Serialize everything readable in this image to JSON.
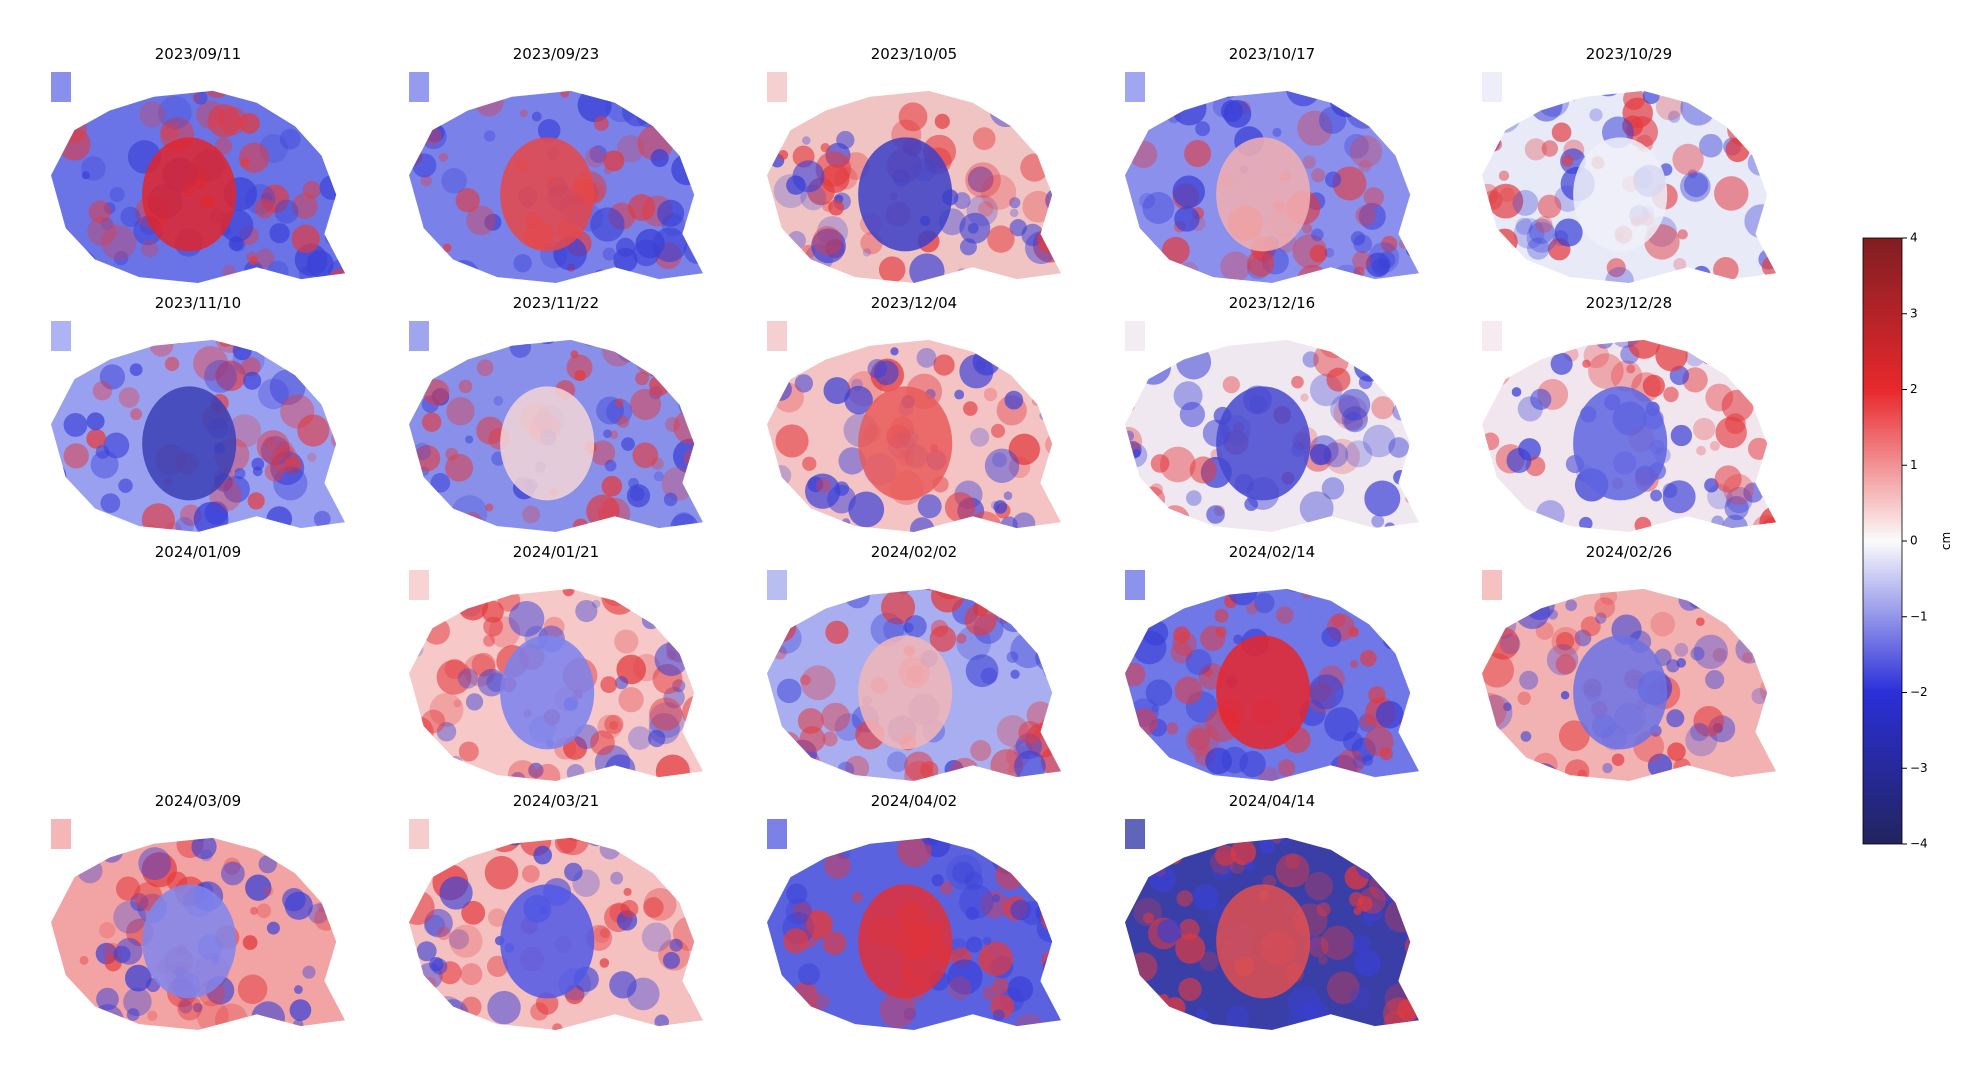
{
  "chart_data": {
    "type": "image-grid",
    "titles": [
      "2023/09/11",
      "2023/09/23",
      "2023/10/05",
      "2023/10/17",
      "2023/10/29",
      "2023/11/10",
      "2023/11/22",
      "2023/12/04",
      "2023/12/16",
      "2023/12/28",
      "2024/01/09",
      "2024/01/21",
      "2024/02/02",
      "2024/02/14",
      "2024/02/26",
      "2024/03/09",
      "2024/03/21",
      "2024/04/02",
      "2024/04/14"
    ],
    "colorbar": {
      "label": "cm",
      "lim": [
        -4,
        4
      ],
      "ticks": [
        {
          "value": 4,
          "label": "4"
        },
        {
          "value": 3,
          "label": "3"
        },
        {
          "value": 2,
          "label": "2"
        },
        {
          "value": 1,
          "label": "1"
        },
        {
          "value": 0,
          "label": "0"
        },
        {
          "value": -1,
          "label": "−1"
        },
        {
          "value": -2,
          "label": "−2"
        },
        {
          "value": -3,
          "label": "−3"
        },
        {
          "value": -4,
          "label": "−4"
        }
      ]
    }
  }
}
